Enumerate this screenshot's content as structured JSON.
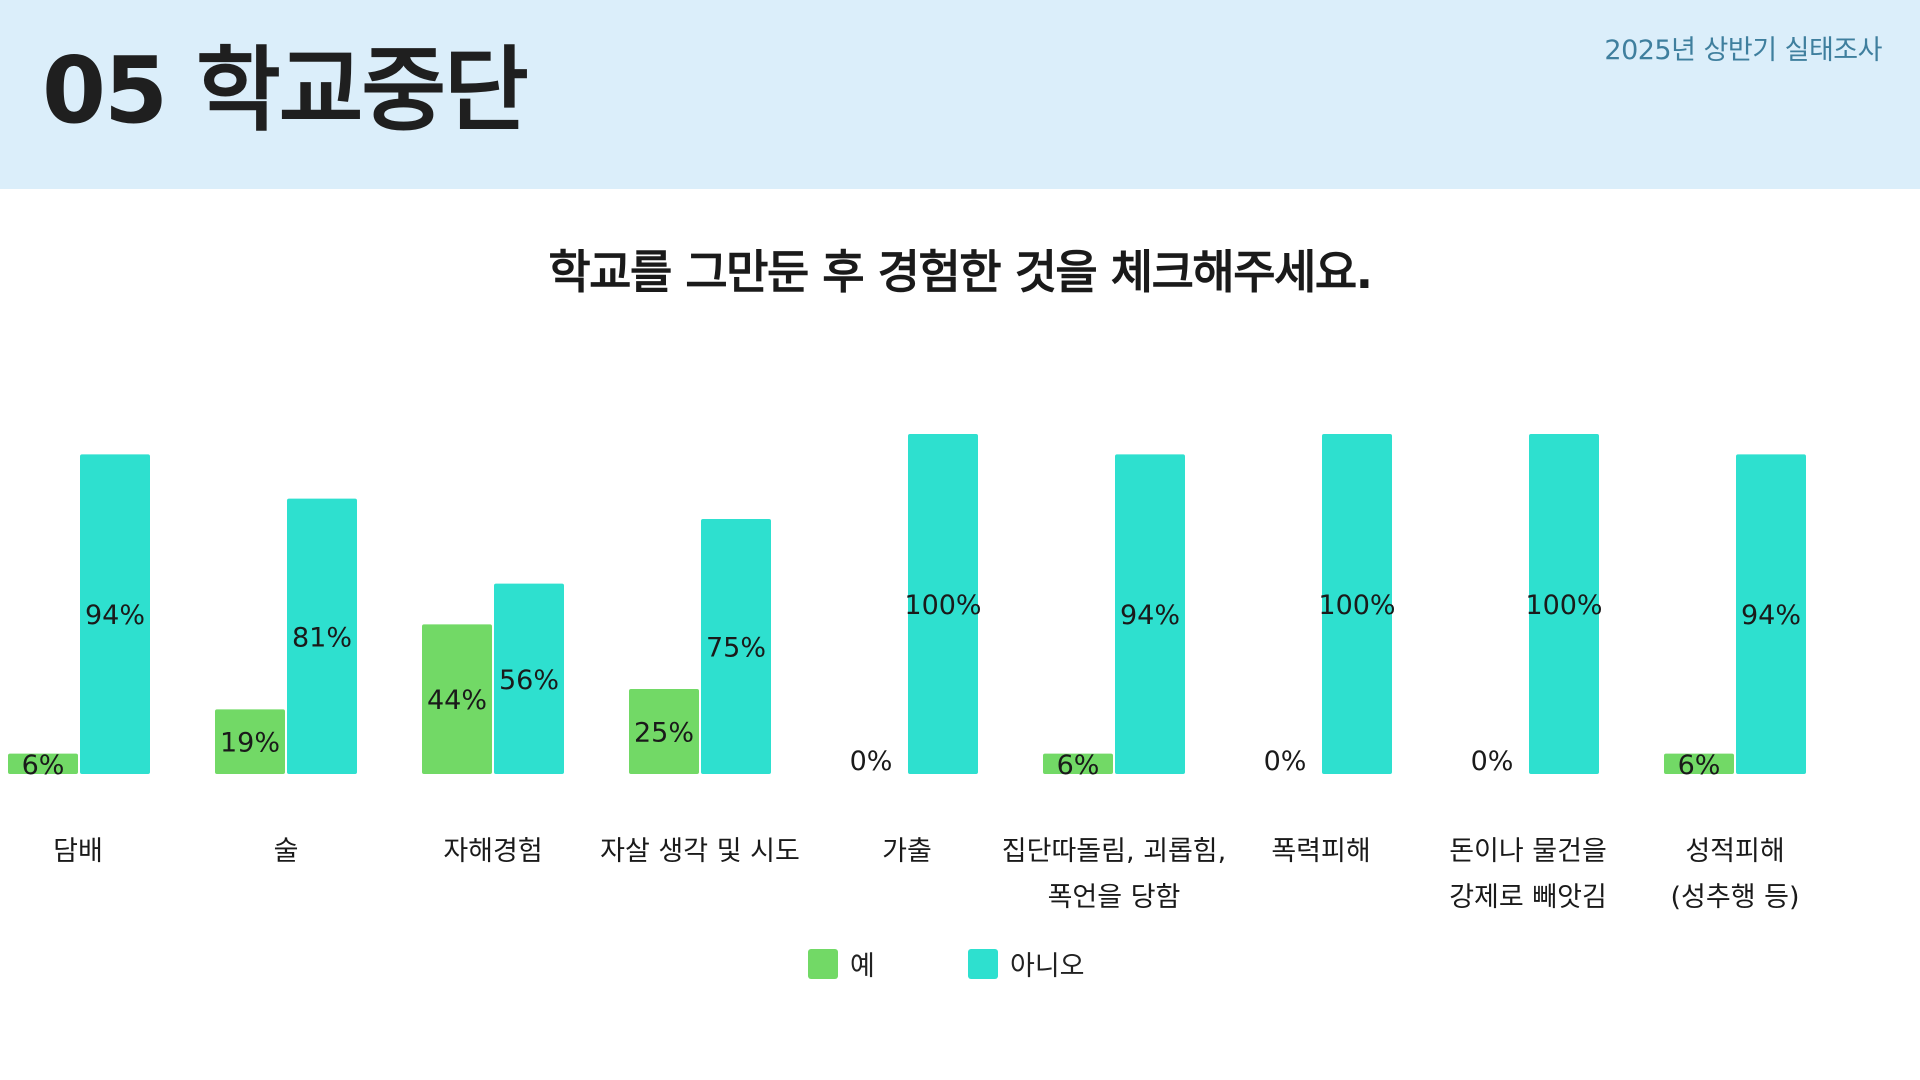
{
  "header": {
    "title": "05 학교중단",
    "survey_label": "2025년 상반기 실태조사"
  },
  "colors": {
    "header_bg": "#dbeefa",
    "yes": "#72d966",
    "no": "#2ee0cf"
  },
  "chart_data": {
    "type": "bar",
    "title": "학교를 그만둔 후 경험한 것을 체크해주세요.",
    "xlabel": "",
    "ylabel": "",
    "ylim": [
      0,
      100
    ],
    "grid": false,
    "legend_position": "bottom-center",
    "categories": [
      [
        "담배"
      ],
      [
        "술"
      ],
      [
        "자해경험"
      ],
      [
        "자살 생각 및 시도"
      ],
      [
        "가출"
      ],
      [
        "집단따돌림, 괴롭힘,",
        "폭언을 당함"
      ],
      [
        "폭력피해"
      ],
      [
        "돈이나 물건을",
        "강제로 빼앗김"
      ],
      [
        "성적피해",
        "(성추행 등)"
      ]
    ],
    "series": [
      {
        "name": "예",
        "color": "#72d966",
        "values": [
          6,
          19,
          44,
          25,
          0,
          6,
          0,
          0,
          6
        ]
      },
      {
        "name": "아니오",
        "color": "#2ee0cf",
        "values": [
          94,
          81,
          56,
          75,
          100,
          94,
          100,
          100,
          94
        ]
      }
    ],
    "value_suffix": "%"
  }
}
